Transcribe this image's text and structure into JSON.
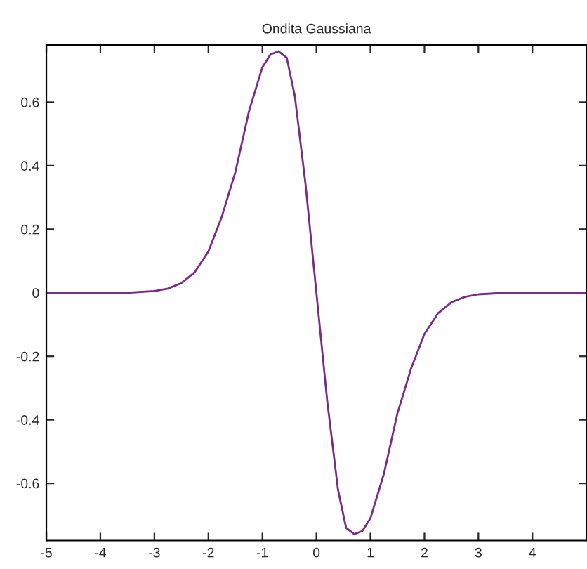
{
  "chart_data": {
    "type": "line",
    "title": "Ondita Gaussiana",
    "x": [
      -5,
      -4,
      -3.5,
      -3,
      -2.75,
      -2.5,
      -2.25,
      -2,
      -1.75,
      -1.5,
      -1.25,
      -1,
      -0.85,
      -0.7,
      -0.55,
      -0.4,
      -0.2,
      0,
      0.2,
      0.4,
      0.55,
      0.7,
      0.85,
      1,
      1.25,
      1.5,
      1.75,
      2,
      2.25,
      2.5,
      2.75,
      3,
      3.5,
      4,
      5
    ],
    "series": [
      {
        "color": "#7a2a8a",
        "values": [
          0,
          0,
          0,
          0.005,
          0.013,
          0.03,
          0.065,
          0.13,
          0.24,
          0.38,
          0.57,
          0.71,
          0.75,
          0.76,
          0.74,
          0.62,
          0.34,
          0,
          -0.34,
          -0.62,
          -0.74,
          -0.76,
          -0.75,
          -0.71,
          -0.57,
          -0.38,
          -0.24,
          -0.13,
          -0.065,
          -0.03,
          -0.013,
          -0.005,
          0,
          0,
          0
        ]
      }
    ],
    "xlim": [
      -5,
      5
    ],
    "xticks": [
      -5,
      -4,
      -3,
      -2,
      -1,
      0,
      1,
      2,
      3,
      4
    ],
    "ylim": [
      -0.78,
      0.78
    ],
    "yticks": [
      -0.6,
      -0.4,
      -0.2,
      0,
      0.2,
      0.4,
      0.6
    ],
    "grid": false,
    "legend": false,
    "line_style": "solid",
    "marker": "none"
  }
}
